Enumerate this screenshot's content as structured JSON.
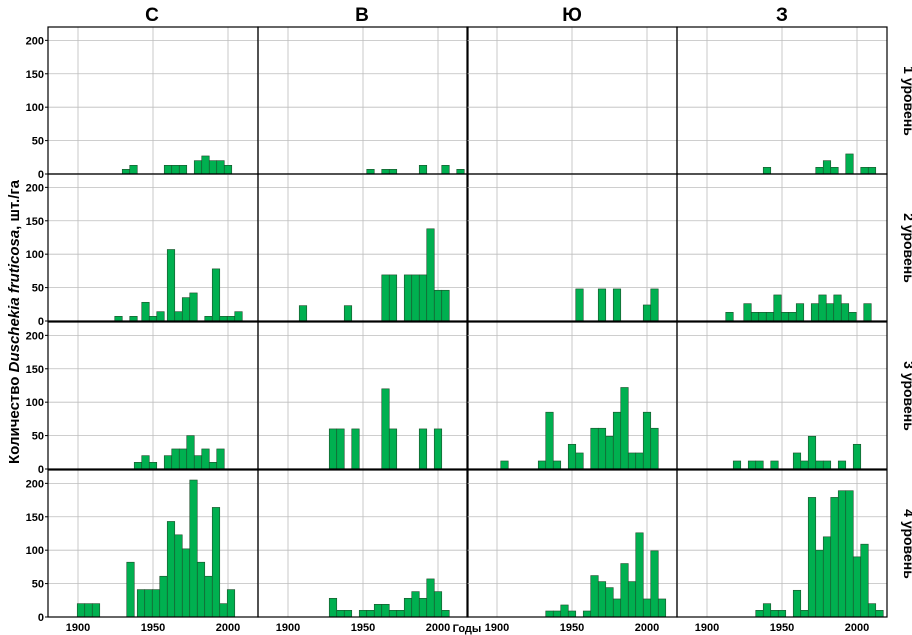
{
  "figure": {
    "y_axis_label_pre": "Количество ",
    "y_axis_label_species": "Duschekia fruticosa",
    "y_axis_label_post": ", шт./га",
    "x_axis_label": "Годы",
    "columns": [
      "С",
      "В",
      "Ю",
      "З"
    ],
    "rows": [
      "1 уровень",
      "2 уровень",
      "3 уровень",
      "4 уровень"
    ],
    "bar_color": "#00b050",
    "bar_edge_color": "#1d4d2a",
    "grid": true
  },
  "chart_data": {
    "type": "bar",
    "layout": "4x4 grid of histograms",
    "xlim": [
      1880,
      2020
    ],
    "ylim": [
      0,
      220
    ],
    "xticks": [
      1900,
      1950,
      2000
    ],
    "yticks": [
      0,
      50,
      100,
      150,
      200
    ],
    "bin_width_years": 5,
    "panels": [
      {
        "column": "С",
        "row": "1 уровень",
        "bars": [
          [
            1932,
            7
          ],
          [
            1937,
            13
          ],
          [
            1960,
            13
          ],
          [
            1965,
            13
          ],
          [
            1970,
            13
          ],
          [
            1980,
            20
          ],
          [
            1985,
            27
          ],
          [
            1990,
            20
          ],
          [
            1995,
            20
          ],
          [
            2000,
            13
          ]
        ]
      },
      {
        "column": "В",
        "row": "1 уровень",
        "bars": [
          [
            1955,
            7
          ],
          [
            1965,
            7
          ],
          [
            1970,
            7
          ],
          [
            1990,
            13
          ],
          [
            2005,
            13
          ],
          [
            2015,
            7
          ]
        ]
      },
      {
        "column": "Ю",
        "row": "1 уровень",
        "bars": []
      },
      {
        "column": "З",
        "row": "1 уровень",
        "bars": [
          [
            1940,
            10
          ],
          [
            1975,
            10
          ],
          [
            1980,
            20
          ],
          [
            1985,
            10
          ],
          [
            1995,
            30
          ],
          [
            2005,
            10
          ],
          [
            2010,
            10
          ]
        ]
      },
      {
        "column": "С",
        "row": "2 уровень",
        "bars": [
          [
            1927,
            7
          ],
          [
            1937,
            7
          ],
          [
            1945,
            28
          ],
          [
            1950,
            7
          ],
          [
            1955,
            14
          ],
          [
            1962,
            107
          ],
          [
            1967,
            14
          ],
          [
            1972,
            35
          ],
          [
            1977,
            42
          ],
          [
            1987,
            7
          ],
          [
            1992,
            78
          ],
          [
            1997,
            7
          ],
          [
            2002,
            7
          ],
          [
            2007,
            14
          ]
        ]
      },
      {
        "column": "В",
        "row": "2 уровень",
        "bars": [
          [
            1910,
            23
          ],
          [
            1940,
            23
          ],
          [
            1965,
            69
          ],
          [
            1970,
            69
          ],
          [
            1980,
            69
          ],
          [
            1985,
            69
          ],
          [
            1990,
            69
          ],
          [
            1995,
            138
          ],
          [
            2000,
            46
          ],
          [
            2005,
            46
          ]
        ]
      },
      {
        "column": "Ю",
        "row": "2 уровень",
        "bars": [
          [
            1955,
            48
          ],
          [
            1970,
            48
          ],
          [
            1980,
            48
          ],
          [
            2000,
            24
          ],
          [
            2005,
            48
          ]
        ]
      },
      {
        "column": "З",
        "row": "2 уровень",
        "bars": [
          [
            1915,
            13
          ],
          [
            1927,
            26
          ],
          [
            1932,
            13
          ],
          [
            1937,
            13
          ],
          [
            1942,
            13
          ],
          [
            1947,
            39
          ],
          [
            1952,
            13
          ],
          [
            1957,
            13
          ],
          [
            1962,
            26
          ],
          [
            1972,
            26
          ],
          [
            1977,
            39
          ],
          [
            1982,
            26
          ],
          [
            1987,
            39
          ],
          [
            1992,
            26
          ],
          [
            1997,
            13
          ],
          [
            2007,
            26
          ]
        ]
      },
      {
        "column": "С",
        "row": "3 уровень",
        "bars": [
          [
            1940,
            10
          ],
          [
            1945,
            20
          ],
          [
            1950,
            10
          ],
          [
            1960,
            20
          ],
          [
            1965,
            30
          ],
          [
            1970,
            30
          ],
          [
            1975,
            50
          ],
          [
            1980,
            20
          ],
          [
            1985,
            30
          ],
          [
            1990,
            10
          ],
          [
            1995,
            30
          ]
        ]
      },
      {
        "column": "В",
        "row": "3 уровень",
        "bars": [
          [
            1930,
            60
          ],
          [
            1935,
            60
          ],
          [
            1945,
            60
          ],
          [
            1965,
            120
          ],
          [
            1970,
            60
          ],
          [
            1990,
            60
          ],
          [
            2000,
            60
          ]
        ]
      },
      {
        "column": "Ю",
        "row": "3 уровень",
        "bars": [
          [
            1905,
            12
          ],
          [
            1930,
            12
          ],
          [
            1935,
            85
          ],
          [
            1940,
            12
          ],
          [
            1950,
            37
          ],
          [
            1955,
            24
          ],
          [
            1965,
            61
          ],
          [
            1970,
            61
          ],
          [
            1975,
            49
          ],
          [
            1980,
            85
          ],
          [
            1985,
            122
          ],
          [
            1990,
            24
          ],
          [
            1995,
            24
          ],
          [
            2000,
            85
          ],
          [
            2005,
            61
          ]
        ]
      },
      {
        "column": "З",
        "row": "3 уровень",
        "bars": [
          [
            1920,
            12
          ],
          [
            1930,
            12
          ],
          [
            1935,
            12
          ],
          [
            1945,
            12
          ],
          [
            1960,
            24
          ],
          [
            1965,
            12
          ],
          [
            1970,
            49
          ],
          [
            1975,
            12
          ],
          [
            1980,
            12
          ],
          [
            1990,
            12
          ],
          [
            2000,
            37
          ]
        ]
      },
      {
        "column": "С",
        "row": "4 уровень",
        "bars": [
          [
            1902,
            20
          ],
          [
            1907,
            20
          ],
          [
            1912,
            20
          ],
          [
            1935,
            82
          ],
          [
            1942,
            41
          ],
          [
            1947,
            41
          ],
          [
            1952,
            41
          ],
          [
            1957,
            61
          ],
          [
            1962,
            143
          ],
          [
            1967,
            123
          ],
          [
            1972,
            102
          ],
          [
            1977,
            205
          ],
          [
            1982,
            82
          ],
          [
            1987,
            61
          ],
          [
            1992,
            164
          ],
          [
            1997,
            20
          ],
          [
            2002,
            41
          ]
        ]
      },
      {
        "column": "В",
        "row": "4 уровень",
        "bars": [
          [
            1930,
            28
          ],
          [
            1935,
            10
          ],
          [
            1940,
            10
          ],
          [
            1950,
            10
          ],
          [
            1955,
            10
          ],
          [
            1960,
            19
          ],
          [
            1965,
            19
          ],
          [
            1970,
            10
          ],
          [
            1975,
            10
          ],
          [
            1980,
            28
          ],
          [
            1985,
            38
          ],
          [
            1990,
            28
          ],
          [
            1995,
            57
          ],
          [
            2000,
            38
          ],
          [
            2005,
            10
          ]
        ]
      },
      {
        "column": "Ю",
        "row": "4 уровень",
        "bars": [
          [
            1935,
            9
          ],
          [
            1940,
            9
          ],
          [
            1945,
            18
          ],
          [
            1950,
            9
          ],
          [
            1960,
            9
          ],
          [
            1965,
            62
          ],
          [
            1970,
            53
          ],
          [
            1975,
            44
          ],
          [
            1980,
            27
          ],
          [
            1985,
            80
          ],
          [
            1990,
            53
          ],
          [
            1995,
            126
          ],
          [
            2000,
            27
          ],
          [
            2005,
            99
          ],
          [
            2010,
            27
          ]
        ]
      },
      {
        "column": "З",
        "row": "4 уровень",
        "bars": [
          [
            1935,
            10
          ],
          [
            1940,
            20
          ],
          [
            1945,
            10
          ],
          [
            1950,
            10
          ],
          [
            1960,
            40
          ],
          [
            1965,
            10
          ],
          [
            1970,
            179
          ],
          [
            1975,
            100
          ],
          [
            1980,
            120
          ],
          [
            1985,
            179
          ],
          [
            1990,
            189
          ],
          [
            1995,
            189
          ],
          [
            2000,
            90
          ],
          [
            2005,
            109
          ],
          [
            2010,
            20
          ],
          [
            2015,
            10
          ]
        ]
      }
    ]
  }
}
